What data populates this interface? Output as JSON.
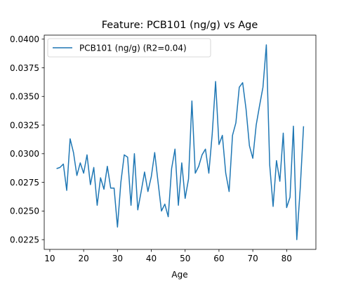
{
  "chart_data": {
    "type": "line",
    "title": "Feature: PCB101 (ng/g) vs Age",
    "xlabel": "Age",
    "ylabel": "",
    "xlim": [
      8.35,
      88.65
    ],
    "ylim": [
      0.02165,
      0.04035
    ],
    "xticks": [
      10,
      20,
      30,
      40,
      50,
      60,
      70,
      80
    ],
    "yticks": [
      0.0225,
      0.025,
      0.0275,
      0.03,
      0.0325,
      0.035,
      0.0375,
      0.04
    ],
    "ytick_labels": [
      "0.0225",
      "0.0250",
      "0.0275",
      "0.0300",
      "0.0325",
      "0.0350",
      "0.0375",
      "0.0400"
    ],
    "grid": false,
    "legend_position": "top-left",
    "series": [
      {
        "name": "PCB101 (ng/g) (R2=0.04)",
        "color": "#1f77b4",
        "x": [
          12,
          13,
          14,
          15,
          16,
          17,
          18,
          19,
          20,
          21,
          22,
          23,
          24,
          25,
          26,
          27,
          28,
          29,
          30,
          31,
          32,
          33,
          34,
          35,
          36,
          37,
          38,
          39,
          40,
          41,
          42,
          43,
          44,
          45,
          46,
          47,
          48,
          49,
          50,
          51,
          52,
          53,
          54,
          55,
          56,
          57,
          58,
          59,
          60,
          61,
          62,
          63,
          64,
          65,
          66,
          67,
          68,
          69,
          70,
          71,
          72,
          73,
          74,
          75,
          76,
          77,
          78,
          79,
          80,
          81,
          82,
          83,
          84,
          85
        ],
        "y": [
          0.0287,
          0.0288,
          0.0291,
          0.0268,
          0.0313,
          0.0301,
          0.0281,
          0.0292,
          0.0283,
          0.0299,
          0.0273,
          0.0288,
          0.0255,
          0.0279,
          0.0269,
          0.0289,
          0.027,
          0.027,
          0.0236,
          0.0275,
          0.0299,
          0.0297,
          0.0255,
          0.03,
          0.0251,
          0.0267,
          0.0284,
          0.0267,
          0.028,
          0.0301,
          0.0275,
          0.025,
          0.0256,
          0.0245,
          0.0287,
          0.0304,
          0.0255,
          0.0292,
          0.0261,
          0.0278,
          0.0346,
          0.0283,
          0.0289,
          0.0299,
          0.0304,
          0.0283,
          0.0317,
          0.0363,
          0.0308,
          0.0316,
          0.0283,
          0.0267,
          0.0316,
          0.0327,
          0.0358,
          0.0362,
          0.0339,
          0.0307,
          0.0296,
          0.0325,
          0.0342,
          0.0358,
          0.0395,
          0.029,
          0.0254,
          0.0294,
          0.0276,
          0.0318,
          0.0253,
          0.0262,
          0.0324,
          0.0225,
          0.0269,
          0.0324
        ]
      }
    ]
  }
}
